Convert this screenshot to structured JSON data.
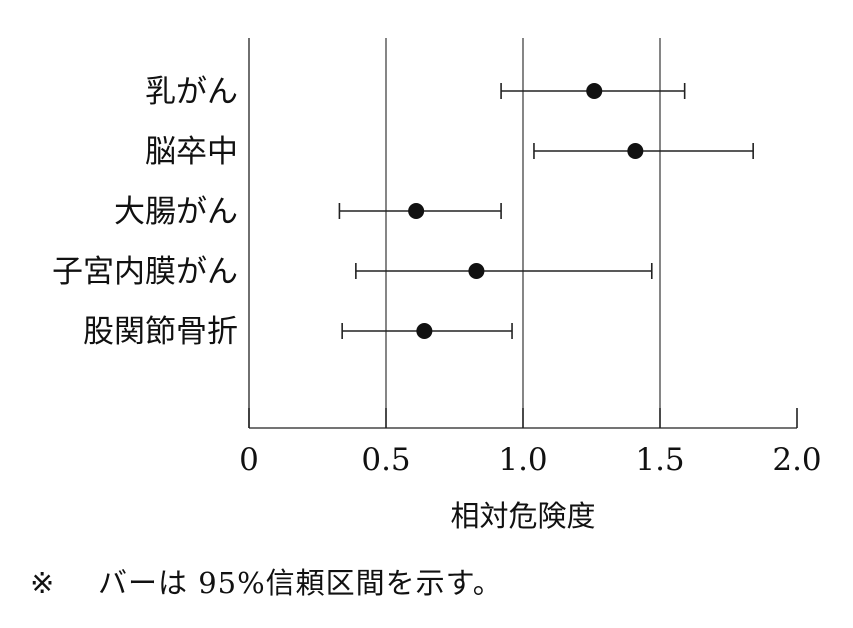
{
  "chart_data": {
    "type": "errorbar",
    "categories": [
      "乳がん",
      "脳卒中",
      "大腸がん",
      "子宮内膜がん",
      "股関節骨折"
    ],
    "values": [
      1.26,
      1.41,
      0.61,
      0.83,
      0.64
    ],
    "ci_low": [
      0.92,
      1.04,
      0.33,
      0.39,
      0.34
    ],
    "ci_high": [
      1.59,
      1.84,
      0.92,
      1.47,
      0.96
    ],
    "xlabel": "相対危険度",
    "xlim": [
      0,
      2.0
    ],
    "xticks": [
      "0",
      "0.5",
      "1.0",
      "1.5",
      "2.0"
    ],
    "reference_lines": [
      0.5,
      1.0,
      1.5
    ]
  },
  "note": {
    "mark": "※",
    "text": "バーは 95%信頼区間を示す。"
  }
}
